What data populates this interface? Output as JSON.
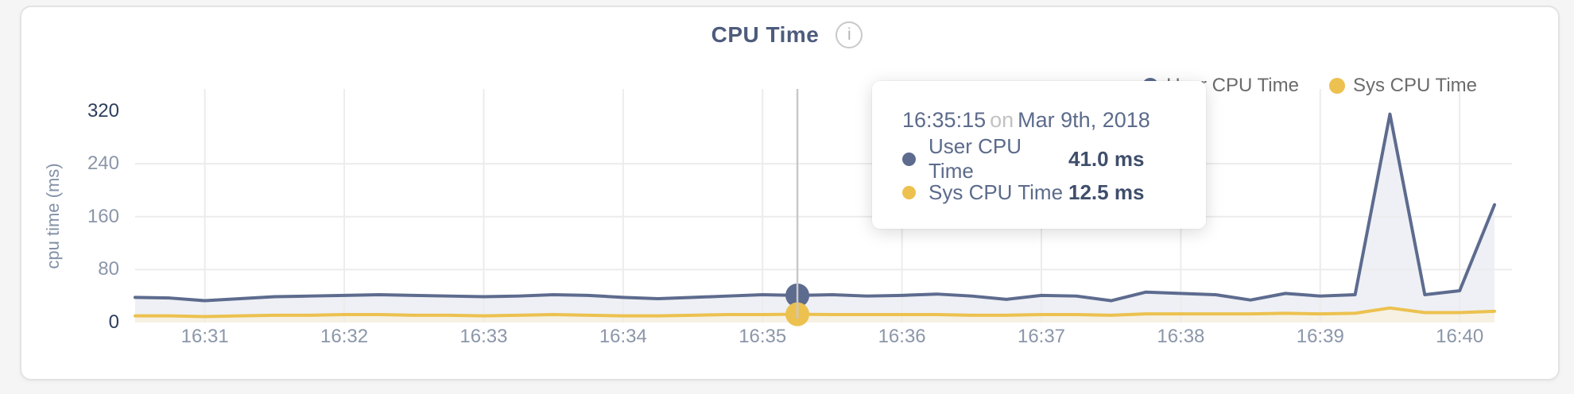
{
  "card": {
    "title": "CPU Time",
    "info_icon": "i"
  },
  "legend": {
    "items": [
      {
        "label": "User CPU Time",
        "color": "#5d6b8e"
      },
      {
        "label": "Sys CPU Time",
        "color": "#ecc14f"
      }
    ]
  },
  "tooltip": {
    "time": "16:35:15",
    "connector": "on",
    "date": "Mar 9th, 2018",
    "rows": [
      {
        "label": "User CPU Time",
        "value": "41.0 ms",
        "color": "#5d6b8e"
      },
      {
        "label": "Sys CPU Time",
        "value": "12.5 ms",
        "color": "#ecc14f"
      }
    ]
  },
  "colors": {
    "grid": "#ececec",
    "crosshair": "#c8c8c8",
    "axis_label": "#8b96a9",
    "axis_label_strong": "#2e3d5c",
    "title": "#4d5c7c",
    "legend_text": "#6b6b6b",
    "tooltip_text": "#5c6b8b",
    "tooltip_muted": "#c2c2c2",
    "tooltip_value": "#3f4e6b",
    "card_border": "#e3e3e3",
    "page_bg": "#f5f5f5"
  },
  "chart_data": {
    "type": "line",
    "title": "CPU Time",
    "xlabel": "",
    "ylabel": "cpu time (ms)",
    "ylim": [
      0,
      320
    ],
    "yticks": [
      0,
      80,
      160,
      240,
      320
    ],
    "xticks": [
      "16:31",
      "16:32",
      "16:33",
      "16:34",
      "16:35",
      "16:36",
      "16:37",
      "16:38",
      "16:39",
      "16:40"
    ],
    "grid": true,
    "legend_position": "top-right",
    "area_fill": true,
    "x": [
      "16:30:30",
      "16:30:45",
      "16:31:00",
      "16:31:15",
      "16:31:30",
      "16:31:45",
      "16:32:00",
      "16:32:15",
      "16:32:30",
      "16:32:45",
      "16:33:00",
      "16:33:15",
      "16:33:30",
      "16:33:45",
      "16:34:00",
      "16:34:15",
      "16:34:30",
      "16:34:45",
      "16:35:00",
      "16:35:15",
      "16:35:30",
      "16:35:45",
      "16:36:00",
      "16:36:15",
      "16:36:30",
      "16:36:45",
      "16:37:00",
      "16:37:15",
      "16:37:30",
      "16:37:45",
      "16:38:00",
      "16:38:15",
      "16:38:30",
      "16:38:45",
      "16:39:00",
      "16:39:15",
      "16:39:30",
      "16:39:45",
      "16:40:00",
      "16:40:15"
    ],
    "series": [
      {
        "name": "User CPU Time",
        "color": "#5d6b8e",
        "fill": "#eef0f5",
        "values": [
          38,
          37,
          33,
          36,
          39,
          40,
          41,
          42,
          41,
          40,
          39,
          40,
          42,
          41,
          38,
          36,
          38,
          40,
          42,
          41,
          42,
          40,
          41,
          43,
          40,
          35,
          41,
          40,
          33,
          46,
          44,
          42,
          34,
          44,
          40,
          42,
          315,
          42,
          48,
          178
        ]
      },
      {
        "name": "Sys CPU Time",
        "color": "#ecc14f",
        "fill": "#f6f1e2",
        "values": [
          10,
          10,
          9,
          10,
          11,
          11,
          12,
          12,
          11,
          11,
          10,
          11,
          12,
          11,
          10,
          10,
          11,
          12,
          12,
          12.5,
          12,
          12,
          12,
          12,
          11,
          11,
          12,
          12,
          11,
          13,
          13,
          13,
          13,
          14,
          13,
          14,
          22,
          15,
          15,
          17
        ]
      }
    ],
    "hover": {
      "index": 19,
      "time": "16:35:15",
      "date": "Mar 9th, 2018",
      "values_ms": [
        41.0,
        12.5
      ]
    }
  }
}
